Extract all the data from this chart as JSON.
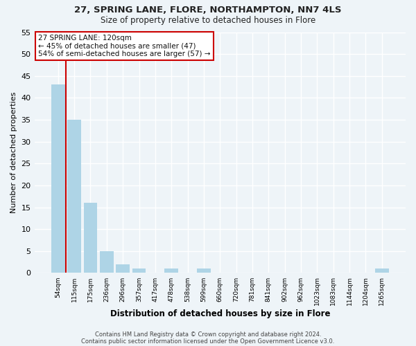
{
  "title1": "27, SPRING LANE, FLORE, NORTHAMPTON, NN7 4LS",
  "title2": "Size of property relative to detached houses in Flore",
  "xlabel": "Distribution of detached houses by size in Flore",
  "ylabel": "Number of detached properties",
  "bar_labels": [
    "54sqm",
    "115sqm",
    "175sqm",
    "236sqm",
    "296sqm",
    "357sqm",
    "417sqm",
    "478sqm",
    "538sqm",
    "599sqm",
    "660sqm",
    "720sqm",
    "781sqm",
    "841sqm",
    "902sqm",
    "962sqm",
    "1023sqm",
    "1083sqm",
    "1144sqm",
    "1204sqm",
    "1265sqm"
  ],
  "bar_values": [
    43,
    35,
    16,
    5,
    2,
    1,
    0,
    1,
    0,
    1,
    0,
    0,
    0,
    0,
    0,
    0,
    0,
    0,
    0,
    0,
    1
  ],
  "bar_color": "#aed4e6",
  "vline_x_idx": 1,
  "vline_color": "#cc0000",
  "annotation_title": "27 SPRING LANE: 120sqm",
  "annotation_line1": "← 45% of detached houses are smaller (47)",
  "annotation_line2": "54% of semi-detached houses are larger (57) →",
  "annotation_box_facecolor": "#ffffff",
  "annotation_box_edgecolor": "#cc0000",
  "ylim": [
    0,
    55
  ],
  "yticks": [
    0,
    5,
    10,
    15,
    20,
    25,
    30,
    35,
    40,
    45,
    50,
    55
  ],
  "footer1": "Contains HM Land Registry data © Crown copyright and database right 2024.",
  "footer2": "Contains public sector information licensed under the Open Government Licence v3.0.",
  "bg_color": "#eef4f8",
  "grid_color": "#ffffff",
  "figsize": [
    6.0,
    5.0
  ],
  "dpi": 100
}
